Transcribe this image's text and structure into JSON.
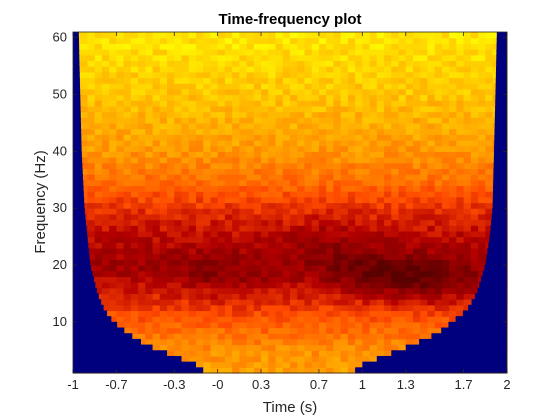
{
  "chart_data": {
    "type": "heatmap",
    "title": "Time-frequency plot",
    "xlabel": "Time (s)",
    "ylabel": "Frequency (Hz)",
    "xlim": [
      -1,
      2
    ],
    "ylim": [
      1,
      61
    ],
    "x_ticks": [
      -1,
      -0.7,
      -0.3,
      0,
      0.3,
      0.7,
      1,
      1.3,
      1.7,
      2
    ],
    "x_tick_labels": [
      "-1",
      "-0.7",
      "-0.3",
      "-0",
      "0.3",
      "0.7",
      "1",
      "1.3",
      "1.7",
      "2"
    ],
    "y_ticks": [
      10,
      20,
      30,
      40,
      50,
      60
    ],
    "y_tick_labels": [
      "10",
      "20",
      "30",
      "40",
      "50",
      "60"
    ],
    "colormap": "hot",
    "masked_color": "#00007f",
    "masked_region": "cone of influence: outside valid window, widest at low frequencies, shrinking toward high frequencies",
    "cone_edge": [
      {
        "freq": 2,
        "t_start": -0.1,
        "t_end": 0.95
      },
      {
        "freq": 4,
        "t_start": -0.3,
        "t_end": 1.15
      },
      {
        "freq": 6,
        "t_start": -0.5,
        "t_end": 1.35
      },
      {
        "freq": 8,
        "t_start": -0.62,
        "t_end": 1.52
      },
      {
        "freq": 10,
        "t_start": -0.72,
        "t_end": 1.62
      },
      {
        "freq": 12,
        "t_start": -0.78,
        "t_end": 1.72
      },
      {
        "freq": 15,
        "t_start": -0.83,
        "t_end": 1.79
      },
      {
        "freq": 20,
        "t_start": -0.88,
        "t_end": 1.85
      },
      {
        "freq": 25,
        "t_start": -0.9,
        "t_end": 1.88
      },
      {
        "freq": 30,
        "t_start": -0.92,
        "t_end": 1.9
      },
      {
        "freq": 40,
        "t_start": -0.94,
        "t_end": 1.91
      },
      {
        "freq": 50,
        "t_start": -0.95,
        "t_end": 1.92
      },
      {
        "freq": 61,
        "t_start": -0.96,
        "t_end": 1.93
      }
    ],
    "power_profile": {
      "description": "relative power (0 = dark red/black, 1 = bright yellow) by frequency band",
      "freq": [
        2,
        5,
        8,
        10,
        13,
        16,
        18,
        20,
        22,
        25,
        28,
        30,
        35,
        40,
        50,
        60
      ],
      "level": [
        0.62,
        0.58,
        0.5,
        0.45,
        0.36,
        0.28,
        0.2,
        0.18,
        0.2,
        0.24,
        0.3,
        0.35,
        0.5,
        0.6,
        0.72,
        0.8
      ]
    },
    "hotspots": [
      {
        "t": 0.0,
        "freq": 18,
        "level": 0.12
      },
      {
        "t": 1.1,
        "freq": 18,
        "level": 0.06
      },
      {
        "t": 1.5,
        "freq": 17,
        "level": 0.1
      },
      {
        "t": 0.8,
        "freq": 24,
        "level": 0.15
      }
    ],
    "grid": false,
    "legend": "none"
  }
}
